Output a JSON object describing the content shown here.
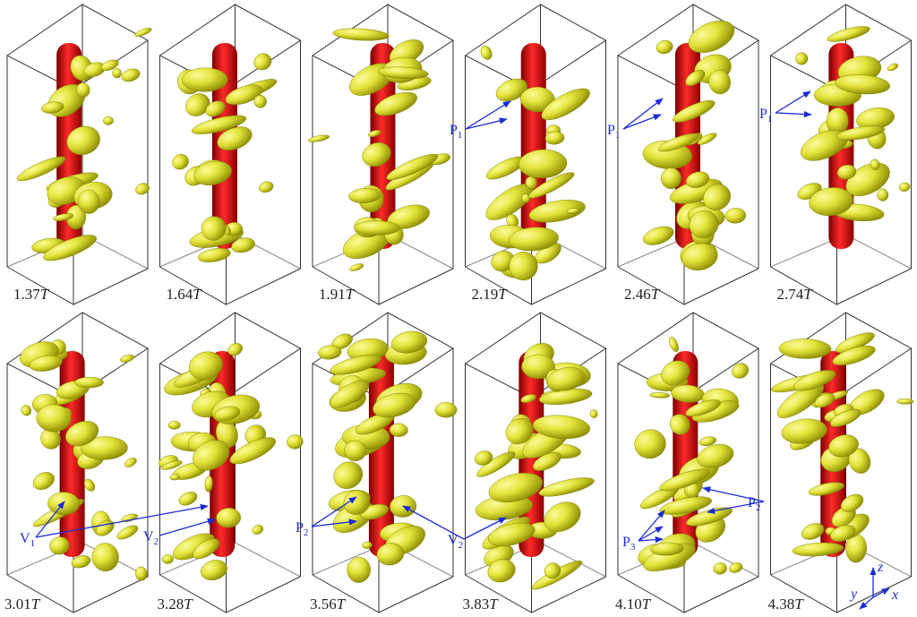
{
  "panels": [
    {
      "time": "1.37",
      "unit": "T"
    },
    {
      "time": "1.64",
      "unit": "T"
    },
    {
      "time": "1.91",
      "unit": "T"
    },
    {
      "time": "2.19",
      "unit": "T"
    },
    {
      "time": "2.46",
      "unit": "T"
    },
    {
      "time": "2.74",
      "unit": "T"
    },
    {
      "time": "3.01",
      "unit": "T"
    },
    {
      "time": "3.28",
      "unit": "T"
    },
    {
      "time": "3.56",
      "unit": "T"
    },
    {
      "time": "3.83",
      "unit": "T"
    },
    {
      "time": "4.10",
      "unit": "T"
    },
    {
      "time": "4.38",
      "unit": "T"
    }
  ],
  "annotations": [
    {
      "letter": "P",
      "sub": "1"
    },
    {
      "letter": "P",
      "sub": "1"
    },
    {
      "letter": "P",
      "sub": "1"
    },
    {
      "letter": "V",
      "sub": "1"
    },
    {
      "letter": "V",
      "sub": "2"
    },
    {
      "letter": "P",
      "sub": "2"
    },
    {
      "letter": "V",
      "sub": "2"
    },
    {
      "letter": "P",
      "sub": "2"
    },
    {
      "letter": "P",
      "sub": "3"
    }
  ],
  "axes": {
    "z": "z",
    "y": "y",
    "x": "x"
  }
}
